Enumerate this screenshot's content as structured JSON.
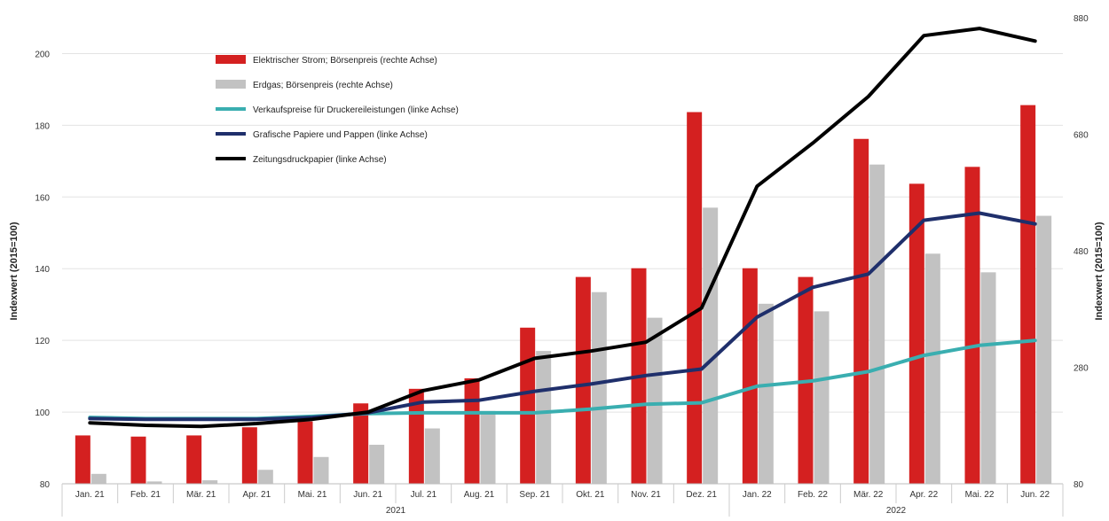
{
  "chart_data": {
    "type": "bar",
    "title": "",
    "categories": [
      "Jan. 21",
      "Feb. 21",
      "Mär. 21",
      "Apr. 21",
      "Mai. 21",
      "Jun. 21",
      "Jul. 21",
      "Aug. 21",
      "Sep. 21",
      "Okt. 21",
      "Nov. 21",
      "Dez. 21",
      "Jan. 22",
      "Feb. 22",
      "Mär. 22",
      "Apr. 22",
      "Mai. 22",
      "Jun. 22"
    ],
    "years": [
      {
        "label": "2021",
        "from": 0,
        "to": 11
      },
      {
        "label": "2022",
        "from": 12,
        "to": 17
      }
    ],
    "ylabel_left": "Indexwert (2015=100)",
    "ylabel_right": "Indexwert (2015=100)",
    "ylim_left": [
      80,
      210
    ],
    "ylim_right": [
      80,
      880
    ],
    "yticks_left": [
      80,
      100,
      120,
      140,
      160,
      180,
      200
    ],
    "yticks_right": [
      80,
      280,
      480,
      680,
      880
    ],
    "grid": true,
    "legend_position": "top-left",
    "series": [
      {
        "name": "Elektrischer Strom; Börsenpreis (rechte Achse)",
        "kind": "bar",
        "axis": "right",
        "color": "#d42020",
        "values": [
          163,
          161,
          163,
          177,
          187,
          218,
          243,
          261,
          348,
          435,
          450,
          718,
          450,
          435,
          672,
          595,
          624,
          730
        ]
      },
      {
        "name": "Erdgas; Börsenpreis (rechte Achse)",
        "kind": "bar",
        "axis": "right",
        "color": "#c2c2c2",
        "values": [
          97,
          84,
          86,
          104,
          126,
          147,
          175,
          205,
          308,
          409,
          365,
          554,
          389,
          376,
          628,
          475,
          443,
          540
        ]
      },
      {
        "name": "Verkaufspreise für Druckereileistungen (linke Achse)",
        "kind": "line",
        "axis": "left",
        "color": "#3aaeb0",
        "values": [
          98.5,
          98.2,
          98.2,
          98.2,
          98.8,
          99.6,
          99.8,
          99.8,
          99.8,
          100.8,
          102.2,
          102.6,
          107.2,
          108.7,
          111.3,
          115.8,
          118.6,
          120
        ]
      },
      {
        "name": "Grafische Papiere und Pappen (linke Achse)",
        "kind": "line",
        "axis": "left",
        "color": "#1f2f6b",
        "values": [
          98.2,
          98.0,
          98.0,
          98.0,
          98.5,
          99.8,
          102.8,
          103.3,
          105.8,
          107.8,
          110.2,
          112.0,
          126.5,
          134.8,
          138.5,
          153.5,
          155.5,
          152.5
        ]
      },
      {
        "name": "Zeitungsdruckpapier (linke Achse)",
        "kind": "line",
        "axis": "left",
        "color": "#000000",
        "values": [
          97.0,
          96.3,
          96.0,
          96.8,
          98.0,
          100.0,
          106.0,
          109.0,
          115.0,
          117.0,
          119.5,
          129.0,
          163.0,
          175.0,
          188.0,
          205.0,
          207.0,
          203.5
        ]
      }
    ]
  }
}
